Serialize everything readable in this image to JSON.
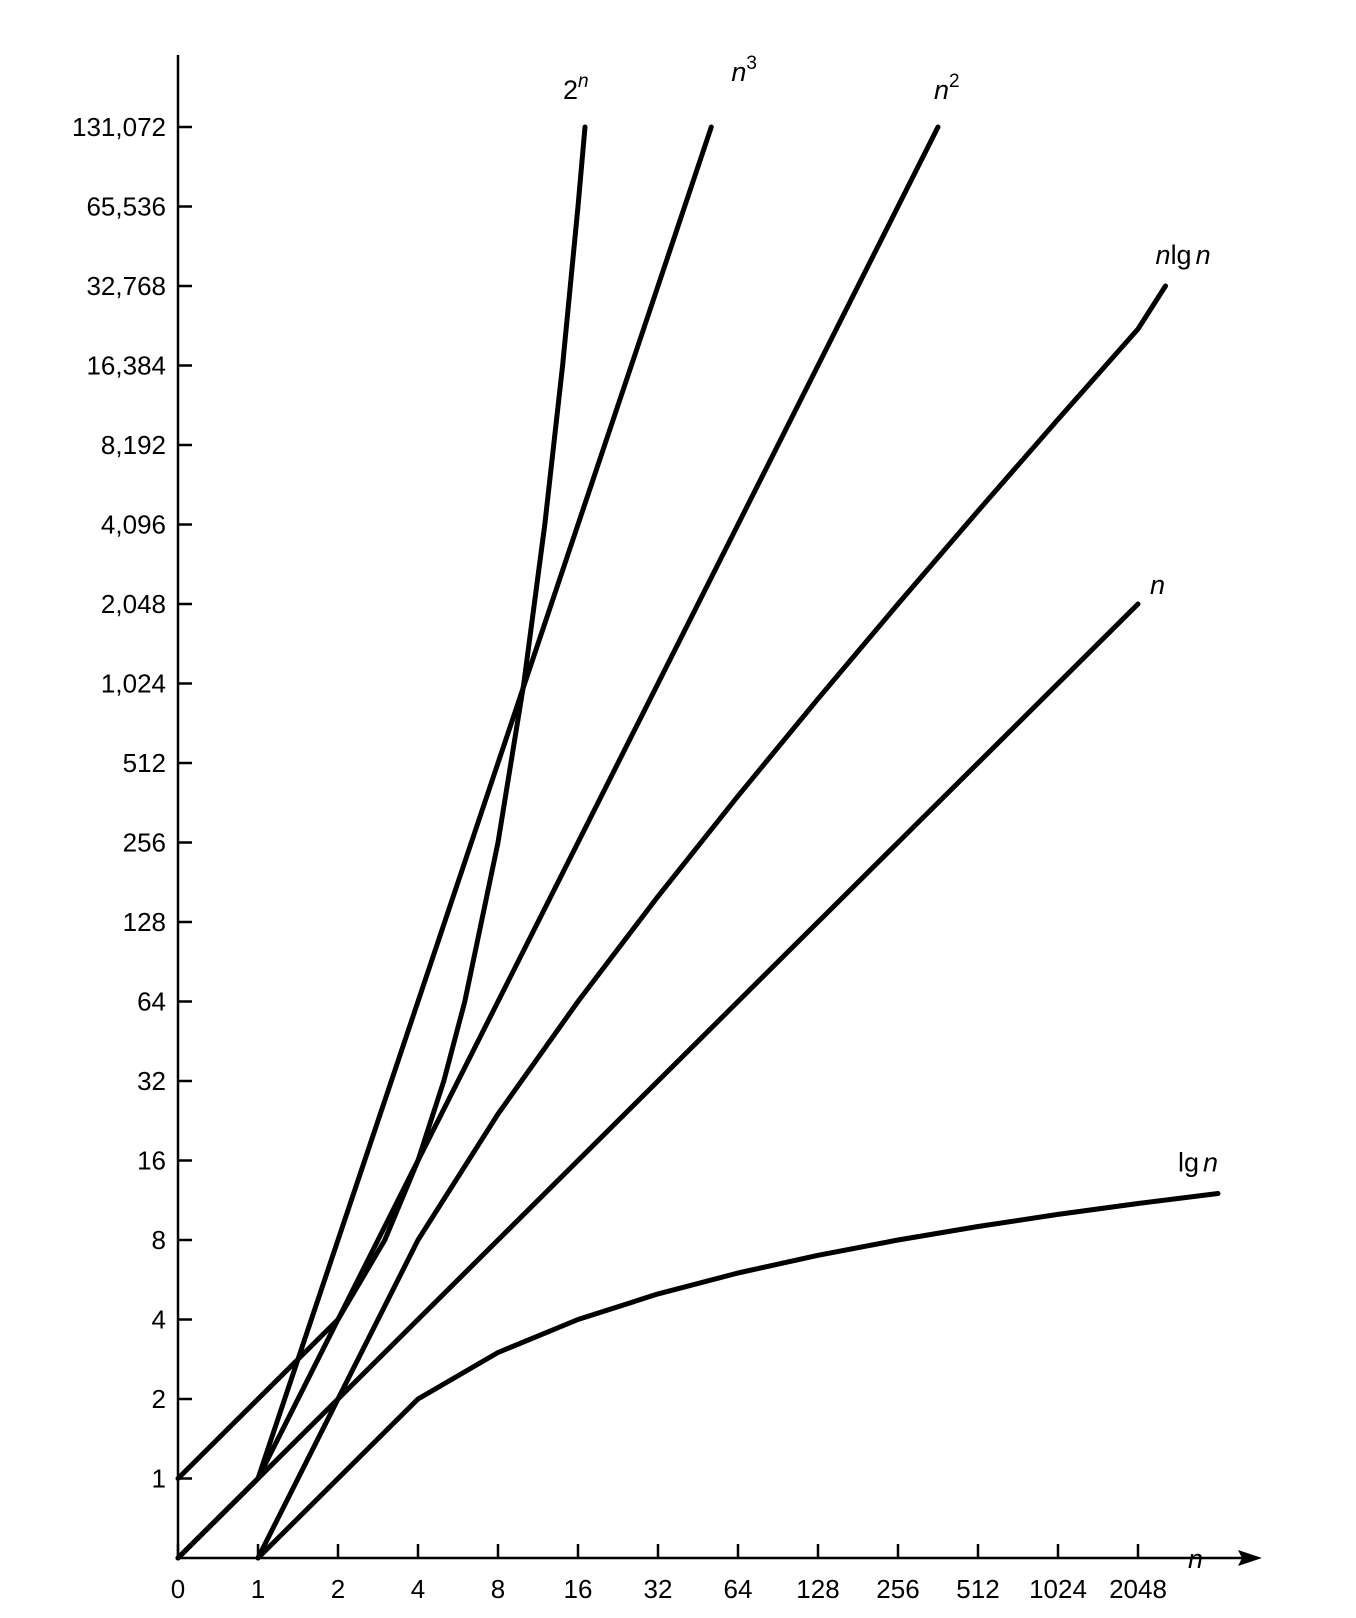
{
  "chart_data": {
    "type": "line",
    "title": "",
    "x_axis": {
      "label": "n",
      "scale": "log2 (with 0 at origin)",
      "ticks": [
        "0",
        "1",
        "2",
        "4",
        "8",
        "16",
        "32",
        "64",
        "128",
        "256",
        "512",
        "1024",
        "2048"
      ],
      "tick_values": [
        0,
        1,
        2,
        4,
        8,
        16,
        32,
        64,
        128,
        256,
        512,
        1024,
        2048
      ]
    },
    "y_axis": {
      "label": "",
      "scale": "log2 (with 0 at origin)",
      "ticks": [
        "1",
        "2",
        "4",
        "8",
        "16",
        "32",
        "64",
        "128",
        "256",
        "512",
        "1,024",
        "2,048",
        "4,096",
        "8,192",
        "16,384",
        "32,768",
        "65,536",
        "131,072"
      ],
      "tick_values": [
        1,
        2,
        4,
        8,
        16,
        32,
        64,
        128,
        256,
        512,
        1024,
        2048,
        4096,
        8192,
        16384,
        32768,
        65536,
        131072
      ]
    },
    "grid": false,
    "series": [
      {
        "name": "2^n",
        "label_base": "2",
        "label_sup": "n",
        "points": [
          [
            0,
            1
          ],
          [
            1,
            2
          ],
          [
            2,
            4
          ],
          [
            3,
            8
          ],
          [
            4,
            16
          ],
          [
            5,
            32
          ],
          [
            6,
            64
          ],
          [
            8,
            256
          ],
          [
            10,
            1024
          ],
          [
            12,
            4096
          ],
          [
            14,
            16384
          ],
          [
            16,
            65536
          ],
          [
            17,
            131072
          ]
        ]
      },
      {
        "name": "n^3",
        "label_base": "n",
        "label_sup": "3",
        "points": [
          [
            0,
            0
          ],
          [
            1,
            1
          ],
          [
            2,
            8
          ],
          [
            4,
            64
          ],
          [
            8,
            512
          ],
          [
            16,
            4096
          ],
          [
            32,
            32768
          ],
          [
            50.8,
            131072
          ]
        ]
      },
      {
        "name": "n^2",
        "label_base": "n",
        "label_sup": "2",
        "points": [
          [
            0,
            0
          ],
          [
            1,
            1
          ],
          [
            2,
            4
          ],
          [
            4,
            16
          ],
          [
            8,
            64
          ],
          [
            16,
            256
          ],
          [
            32,
            1024
          ],
          [
            64,
            4096
          ],
          [
            128,
            16384
          ],
          [
            256,
            65536
          ],
          [
            362,
            131072
          ]
        ]
      },
      {
        "name": "n lg n",
        "label_base": "n",
        "label_rest": "lg",
        "label_end": "n",
        "points": [
          [
            1,
            0
          ],
          [
            2,
            2
          ],
          [
            4,
            8
          ],
          [
            8,
            24
          ],
          [
            16,
            64
          ],
          [
            32,
            160
          ],
          [
            64,
            384
          ],
          [
            128,
            896
          ],
          [
            256,
            2048
          ],
          [
            512,
            4608
          ],
          [
            1024,
            10240
          ],
          [
            2048,
            22528
          ],
          [
            2600,
            32768
          ]
        ]
      },
      {
        "name": "n",
        "label_base": "n",
        "points": [
          [
            0,
            0
          ],
          [
            1,
            1
          ],
          [
            2,
            2
          ],
          [
            4,
            4
          ],
          [
            8,
            8
          ],
          [
            16,
            16
          ],
          [
            32,
            32
          ],
          [
            64,
            64
          ],
          [
            128,
            128
          ],
          [
            256,
            256
          ],
          [
            512,
            512
          ],
          [
            1024,
            1024
          ],
          [
            2048,
            2048
          ]
        ]
      },
      {
        "name": "lg n",
        "label_rest": "lg",
        "label_end": "n",
        "points": [
          [
            1,
            0
          ],
          [
            2,
            1
          ],
          [
            4,
            2
          ],
          [
            8,
            3
          ],
          [
            16,
            4
          ],
          [
            32,
            5
          ],
          [
            64,
            6
          ],
          [
            128,
            7
          ],
          [
            256,
            8
          ],
          [
            512,
            9
          ],
          [
            1024,
            10
          ],
          [
            2048,
            11
          ],
          [
            4096,
            12
          ]
        ]
      }
    ]
  }
}
